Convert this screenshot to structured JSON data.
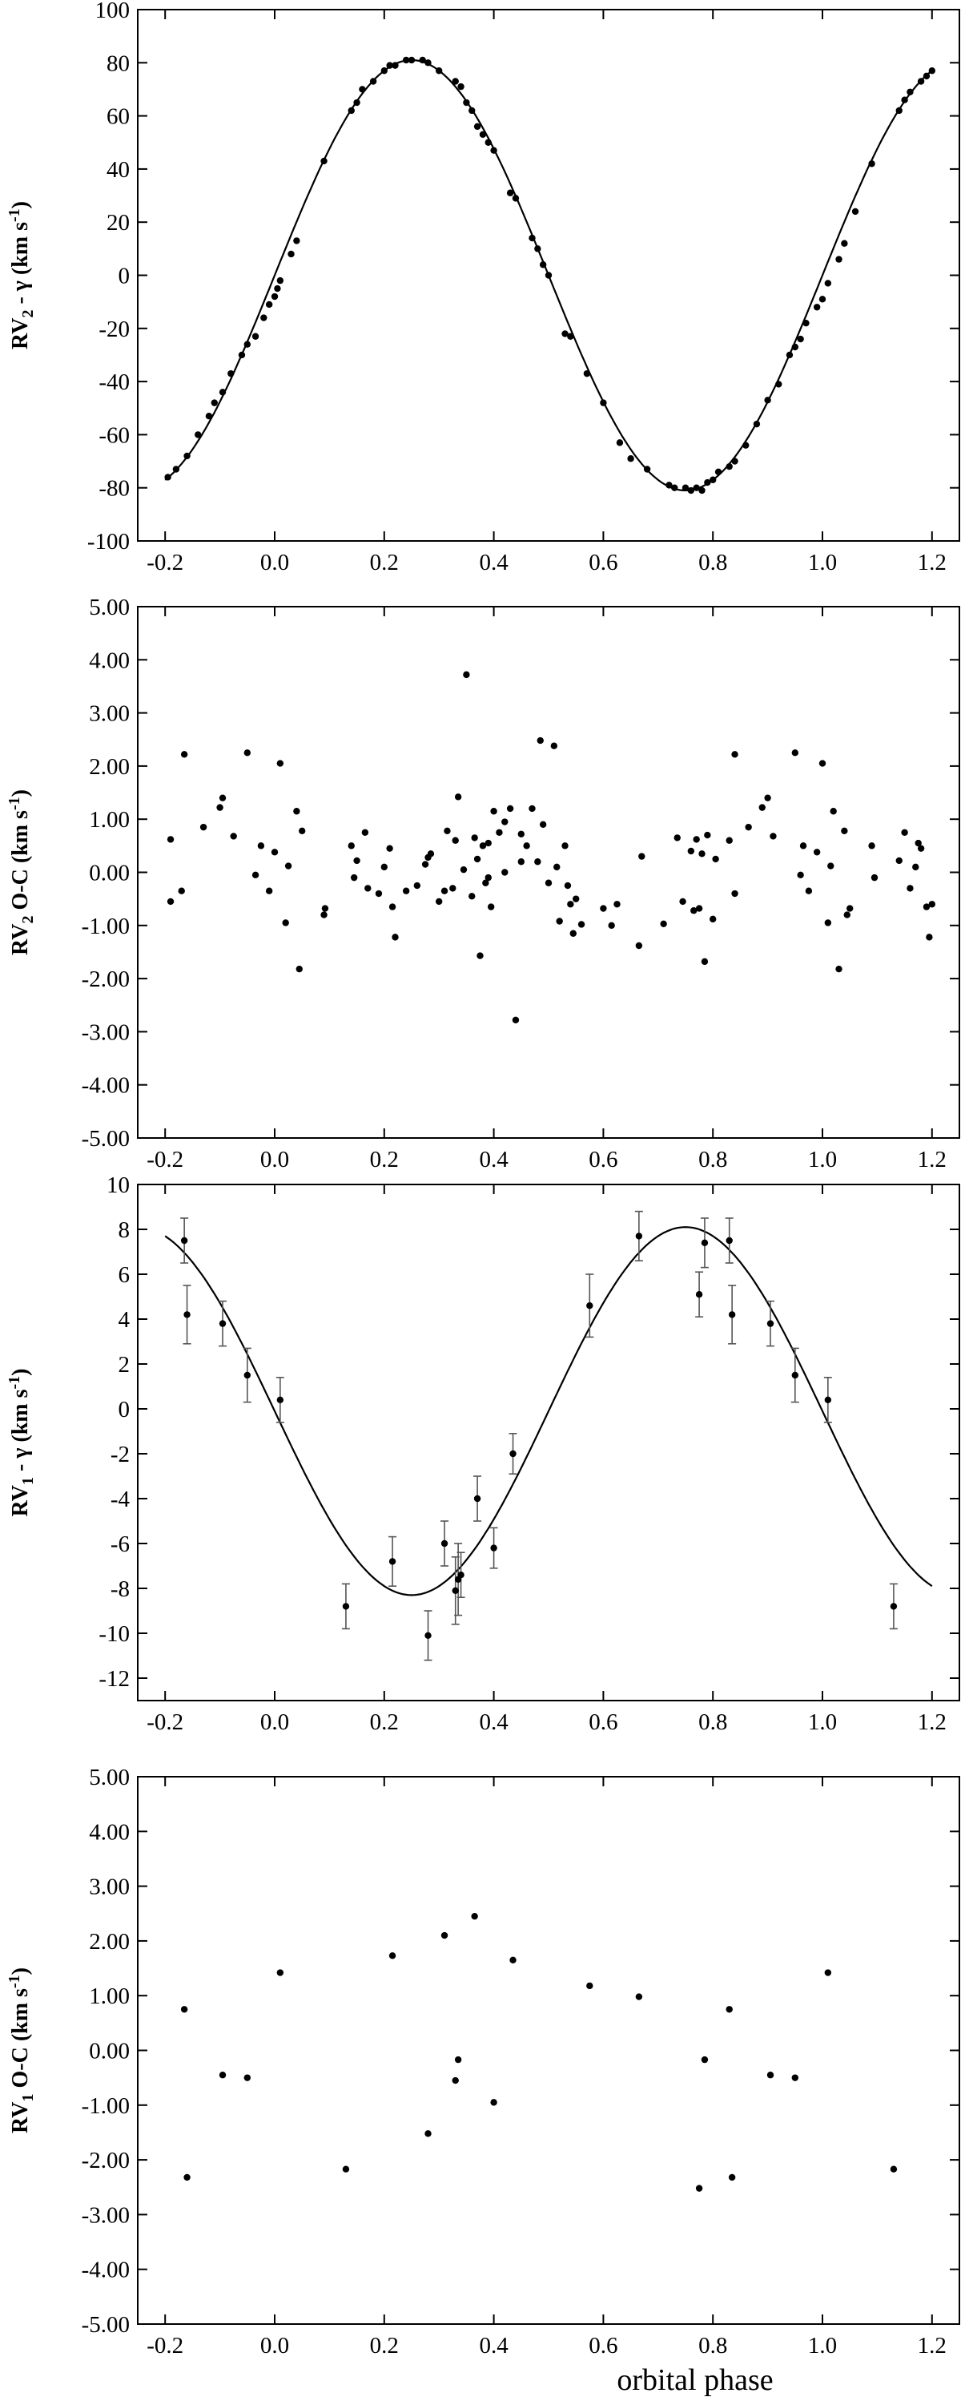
{
  "chart_data": [
    {
      "id": "panel1",
      "type": "scatter",
      "ylabel_parts": [
        "RV",
        "2",
        " - γ  (km s",
        "-1",
        ")"
      ],
      "xlim": [
        -0.25,
        1.25
      ],
      "ylim": [
        -100,
        100
      ],
      "yticks": [
        "100",
        "80",
        "60",
        "40",
        "20",
        "0",
        "-20",
        "-40",
        "-60",
        "-80",
        "-100"
      ],
      "ytick_values": [
        100,
        80,
        60,
        40,
        20,
        0,
        -20,
        -40,
        -60,
        -80,
        -100
      ],
      "xticks": [
        "-0.2",
        "0.0",
        "0.2",
        "0.4",
        "0.6",
        "0.8",
        "1.0",
        "1.2"
      ],
      "xtick_values": [
        -0.2,
        0.0,
        0.2,
        0.4,
        0.6,
        0.8,
        1.0,
        1.2
      ],
      "model_curve": {
        "amplitude": 81,
        "phase_of_max": 0.25,
        "x_range": [
          -0.2,
          1.2
        ]
      },
      "points_x": [
        -0.195,
        -0.18,
        -0.16,
        -0.14,
        -0.12,
        -0.11,
        -0.095,
        -0.08,
        -0.06,
        -0.05,
        -0.035,
        -0.02,
        -0.01,
        0.0,
        0.005,
        0.01,
        0.03,
        0.04,
        0.09,
        0.14,
        0.15,
        0.16,
        0.18,
        0.2,
        0.21,
        0.22,
        0.24,
        0.25,
        0.27,
        0.28,
        0.3,
        0.33,
        0.34,
        0.35,
        0.36,
        0.37,
        0.38,
        0.39,
        0.4,
        0.43,
        0.44,
        0.47,
        0.48,
        0.49,
        0.5,
        0.53,
        0.54,
        0.57,
        0.6,
        0.63,
        0.65,
        0.68,
        0.72,
        0.73,
        0.75,
        0.76,
        0.77,
        0.78,
        0.79,
        0.8,
        0.81,
        0.83,
        0.84,
        0.86,
        0.88,
        0.9,
        0.92,
        0.94,
        0.95,
        0.96,
        0.97,
        0.99,
        1.0,
        1.01,
        1.03,
        1.04,
        1.06,
        1.09,
        1.14,
        1.15,
        1.16,
        1.18,
        1.19,
        1.2
      ],
      "values": [
        -76,
        -73,
        -68,
        -60,
        -53,
        -48,
        -44,
        -37,
        -30,
        -26,
        -23,
        -16,
        -11,
        -8,
        -5,
        -2,
        8,
        13,
        43,
        62,
        65,
        70,
        73,
        77,
        79,
        79,
        81,
        81,
        81,
        80,
        77,
        73,
        71,
        65,
        62,
        56,
        53,
        50,
        47,
        31,
        29,
        14,
        10,
        4,
        0,
        -22,
        -23,
        -37,
        -48,
        -63,
        -69,
        -73,
        -79,
        -80,
        -80,
        -81,
        -80,
        -81,
        -78,
        -77,
        -74,
        -72,
        -70,
        -64,
        -56,
        -47,
        -41,
        -30,
        -27,
        -24,
        -18,
        -12,
        -9,
        -3,
        6,
        12,
        24,
        42,
        62,
        66,
        69,
        73,
        75,
        77
      ]
    },
    {
      "id": "panel2",
      "type": "scatter",
      "ylabel_parts": [
        "RV",
        "2",
        " O-C (km s",
        "-1",
        ")"
      ],
      "xlim": [
        -0.25,
        1.25
      ],
      "ylim": [
        -5.0,
        5.0
      ],
      "yticks": [
        "5.00",
        "4.00",
        "3.00",
        "2.00",
        "1.00",
        "0.00",
        "-1.00",
        "-2.00",
        "-3.00",
        "-4.00",
        "-5.00"
      ],
      "ytick_values": [
        5,
        4,
        3,
        2,
        1,
        0,
        -1,
        -2,
        -3,
        -4,
        -5
      ],
      "xticks": [
        "-0.2",
        "0.0",
        "0.2",
        "0.4",
        "0.6",
        "0.8",
        "1.0",
        "1.2"
      ],
      "xtick_values": [
        -0.2,
        0.0,
        0.2,
        0.4,
        0.6,
        0.8,
        1.0,
        1.2
      ],
      "points_x": [
        -0.19,
        -0.19,
        -0.17,
        -0.165,
        -0.13,
        -0.1,
        -0.095,
        -0.075,
        -0.05,
        -0.035,
        -0.025,
        -0.01,
        0.0,
        0.01,
        0.02,
        0.025,
        0.04,
        0.045,
        0.05,
        0.09,
        0.092,
        0.14,
        0.145,
        0.15,
        0.165,
        0.17,
        0.2,
        0.21,
        0.215,
        0.22,
        0.24,
        0.275,
        0.28,
        0.285,
        0.3,
        0.315,
        0.325,
        0.33,
        0.335,
        0.345,
        0.35,
        0.36,
        0.365,
        0.37,
        0.375,
        0.38,
        0.385,
        0.39,
        0.395,
        0.4,
        0.41,
        0.42,
        0.43,
        0.44,
        0.45,
        0.47,
        0.48,
        0.485,
        0.49,
        0.5,
        0.51,
        0.515,
        0.52,
        0.53,
        0.535,
        0.54,
        0.545,
        0.55,
        0.56,
        0.6,
        0.615,
        0.625,
        0.665,
        0.67,
        0.71,
        0.735,
        0.745,
        0.76,
        0.765,
        0.77,
        0.775,
        0.78,
        0.785,
        0.79,
        0.8,
        0.805,
        0.83,
        0.84,
        0.865,
        0.89,
        0.9,
        0.91,
        0.95,
        0.96,
        0.965,
        0.975,
        0.99,
        1.0,
        1.01,
        1.015,
        1.02,
        1.03,
        1.04,
        1.045,
        1.05,
        1.09,
        1.095,
        1.14,
        1.15,
        1.16,
        1.17,
        1.18,
        1.19,
        1.195
      ],
      "values": [
        0.62,
        -0.55,
        -0.35,
        2.22,
        0.85,
        1.22,
        1.4,
        0.68,
        2.25,
        -0.05,
        0.5,
        -0.35,
        0.38,
        2.05,
        -0.95,
        0.12,
        1.15,
        -1.82,
        0.78,
        -0.8,
        -0.68,
        0.5,
        -0.1,
        0.22,
        0.75,
        -0.3,
        0.1,
        0.45,
        -0.65,
        -1.22,
        -0.35,
        0.15,
        0.28,
        0.35,
        -0.55,
        0.78,
        -0.3,
        0.6,
        1.42,
        0.05,
        3.72,
        -0.45,
        0.65,
        0.25,
        -1.57,
        0.5,
        -0.2,
        0.55,
        -0.65,
        1.15,
        0.75,
        0.95,
        1.2,
        -2.78,
        0.72,
        1.2,
        0.2,
        2.48,
        0.9,
        -0.2,
        2.38,
        0.1,
        -0.92,
        0.5,
        -0.25,
        -0.6,
        -1.15,
        -0.5,
        -0.98,
        -0.68,
        -1.0,
        -0.6,
        -1.38,
        0.3,
        -0.97,
        0.65,
        -0.55,
        0.4,
        -0.72,
        0.62,
        -0.68,
        0.35,
        -1.68,
        0.7,
        -0.88,
        0.25,
        0.6,
        2.22,
        0.85,
        1.22,
        1.4,
        0.68,
        2.25,
        -0.05,
        0.5,
        -0.35,
        0.38,
        2.05,
        -0.95,
        0.12,
        1.15,
        -1.82,
        0.78,
        -0.8,
        -0.68,
        0.5,
        -0.1,
        0.22,
        0.75,
        -0.3,
        0.1,
        0.45,
        -0.65,
        -1.22
      ],
      "extra": [
        [
          0.19,
          -0.4
        ],
        [
          0.26,
          -0.25
        ],
        [
          0.84,
          -0.4
        ],
        [
          0.45,
          0.2
        ],
        [
          0.31,
          -0.35
        ],
        [
          0.42,
          0.0
        ],
        [
          0.46,
          0.5
        ],
        [
          0.39,
          -0.1
        ],
        [
          1.2,
          -0.6
        ],
        [
          1.175,
          0.55
        ]
      ]
    },
    {
      "id": "panel3",
      "type": "scatter",
      "ylabel_parts": [
        "RV",
        "1",
        " - γ  (km s",
        "-1",
        ")"
      ],
      "xlim": [
        -0.25,
        1.25
      ],
      "ylim": [
        -13,
        10
      ],
      "yticks": [
        "10",
        "8",
        "6",
        "4",
        "2",
        "0",
        "-2",
        "-4",
        "-6",
        "-8",
        "-10",
        "-12"
      ],
      "ytick_values": [
        10,
        8,
        6,
        4,
        2,
        0,
        -2,
        -4,
        -6,
        -8,
        -10,
        -12
      ],
      "xticks": [
        "-0.2",
        "0.0",
        "0.2",
        "0.4",
        "0.6",
        "0.8",
        "1.0",
        "1.2"
      ],
      "xtick_values": [
        -0.2,
        0.0,
        0.2,
        0.4,
        0.6,
        0.8,
        1.0,
        1.2
      ],
      "model_curve": {
        "amplitude": 8.2,
        "offset": -0.1,
        "phase_of_max": 0.75,
        "x_range": [
          -0.2,
          1.2
        ]
      },
      "points_x": [
        -0.165,
        -0.16,
        -0.095,
        -0.05,
        0.01,
        0.13,
        0.215,
        0.28,
        0.31,
        0.33,
        0.335,
        0.34,
        0.37,
        0.4,
        0.435,
        0.575,
        0.665,
        0.775,
        0.785,
        0.83,
        0.835,
        0.905,
        0.95,
        1.01,
        1.13
      ],
      "values": [
        7.5,
        4.2,
        3.8,
        1.5,
        0.4,
        -8.8,
        -6.8,
        -10.1,
        -6.0,
        -8.1,
        -7.6,
        -7.4,
        -4.0,
        -6.2,
        -2.0,
        4.6,
        7.7,
        5.1,
        7.4,
        7.5,
        4.2,
        3.8,
        1.5,
        0.4,
        -8.8
      ],
      "errors": [
        1.0,
        1.3,
        1.0,
        1.2,
        1.0,
        1.0,
        1.1,
        1.1,
        1.0,
        1.5,
        1.6,
        1.0,
        1.0,
        0.9,
        0.9,
        1.4,
        1.1,
        1.0,
        1.1,
        1.0,
        1.3,
        1.0,
        1.2,
        1.0,
        1.0
      ]
    },
    {
      "id": "panel4",
      "type": "scatter",
      "ylabel_parts": [
        "RV",
        "1",
        " O-C (km s",
        "-1",
        ")"
      ],
      "xlim": [
        -0.25,
        1.25
      ],
      "ylim": [
        -5.0,
        5.0
      ],
      "yticks": [
        "5.00",
        "4.00",
        "3.00",
        "2.00",
        "1.00",
        "0.00",
        "-1.00",
        "-2.00",
        "-3.00",
        "-4.00",
        "-5.00"
      ],
      "ytick_values": [
        5,
        4,
        3,
        2,
        1,
        0,
        -1,
        -2,
        -3,
        -4,
        -5
      ],
      "xticks": [
        "-0.2",
        "0.0",
        "0.2",
        "0.4",
        "0.6",
        "0.8",
        "1.0",
        "1.2"
      ],
      "xtick_values": [
        -0.2,
        0.0,
        0.2,
        0.4,
        0.6,
        0.8,
        1.0,
        1.2
      ],
      "xlabel": "orbital phase",
      "points_x": [
        -0.165,
        -0.16,
        -0.095,
        -0.05,
        0.01,
        0.13,
        0.215,
        0.28,
        0.31,
        0.33,
        0.335,
        0.365,
        0.4,
        0.435,
        0.575,
        0.665,
        0.775,
        0.785,
        0.83,
        0.835,
        0.905,
        0.95,
        1.01,
        1.13
      ],
      "values": [
        0.75,
        -2.32,
        -0.45,
        -0.5,
        1.42,
        -2.17,
        1.73,
        -1.52,
        2.1,
        -0.55,
        -0.17,
        2.45,
        -0.95,
        1.65,
        1.18,
        0.98,
        -2.52,
        -0.17,
        0.75,
        -2.32,
        -0.45,
        -0.5,
        1.42,
        -2.17
      ]
    }
  ]
}
